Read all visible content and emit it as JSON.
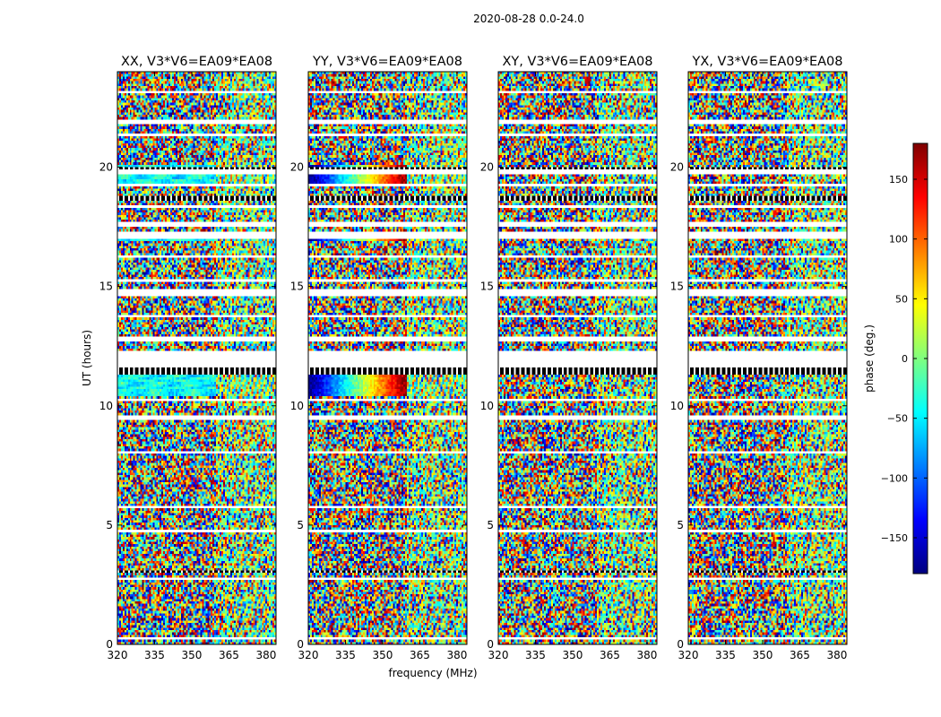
{
  "suptitle": "2020-08-28 0.0-24.0",
  "chart_data": {
    "type": "heatmap",
    "x_axis": {
      "label": "frequency (MHz)",
      "range": [
        320,
        384
      ],
      "ticks": [
        320,
        335,
        350,
        365,
        380
      ]
    },
    "y_axis": {
      "label": "UT (hours)",
      "range": [
        0,
        24
      ],
      "ticks": [
        0,
        5,
        10,
        15,
        20
      ]
    },
    "colorbar": {
      "label": "phase (deg.)",
      "range": [
        -180,
        180
      ],
      "ticks": [
        -150,
        -100,
        -50,
        0,
        50,
        100,
        150
      ],
      "colormap": "jet",
      "stops": [
        "#00007f",
        "#0000ff",
        "#007fff",
        "#00ffff",
        "#7fff7f",
        "#ffff00",
        "#ff7f00",
        "#ff0000",
        "#7f0000"
      ]
    },
    "panels": [
      {
        "title": "XX, V3*V6=EA09*EA08"
      },
      {
        "title": "YY, V3*V6=EA09*EA08"
      },
      {
        "title": "XY, V3*V6=EA09*EA08"
      },
      {
        "title": "YX, V3*V6=EA09*EA08"
      }
    ],
    "blank_gaps_ut_hours": [
      [
        0.2,
        0.25
      ],
      [
        1.45,
        1.5
      ],
      [
        2.75,
        2.85
      ],
      [
        4.7,
        4.75
      ],
      [
        5.7,
        5.8
      ],
      [
        7.45,
        7.5
      ],
      [
        8.0,
        8.1
      ],
      [
        8.55,
        8.65
      ],
      [
        9.45,
        9.55
      ],
      [
        10.25,
        10.35
      ],
      [
        11.6,
        12.3
      ],
      [
        12.75,
        12.85
      ],
      [
        13.7,
        13.8
      ],
      [
        14.6,
        14.9
      ],
      [
        15.15,
        15.25
      ],
      [
        16.2,
        16.3
      ],
      [
        17.0,
        17.3
      ],
      [
        17.55,
        17.65
      ],
      [
        18.3,
        18.4
      ],
      [
        19.2,
        19.3
      ],
      [
        19.75,
        19.85
      ],
      [
        21.3,
        21.4
      ],
      [
        21.85,
        22.0
      ],
      [
        23.1,
        23.2
      ]
    ],
    "flagged_rows_ut_hours": [
      [
        3.0,
        3.1
      ],
      [
        11.3,
        11.6
      ],
      [
        18.6,
        18.8
      ],
      [
        19.9,
        20.0
      ]
    ]
  }
}
